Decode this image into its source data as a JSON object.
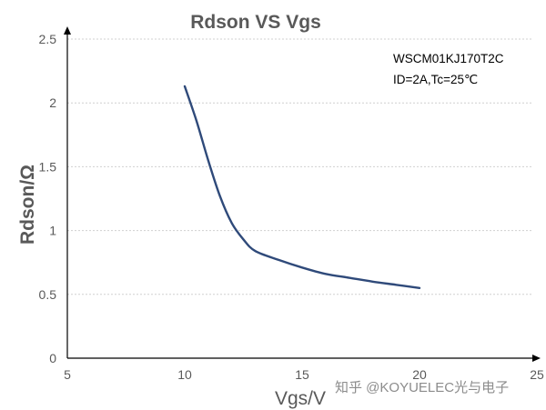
{
  "chart_data": {
    "type": "line",
    "title": "Rdson VS Vgs",
    "xlabel": "Vgs/V",
    "ylabel": "Rdson/Ω",
    "xlim": [
      5,
      25
    ],
    "ylim": [
      0,
      2.5
    ],
    "xticks": [
      5,
      10,
      15,
      20,
      25
    ],
    "yticks": [
      0,
      0.5,
      1,
      1.5,
      2,
      2.5
    ],
    "xtick_labels": [
      "5",
      "10",
      "15",
      "20",
      "25"
    ],
    "ytick_labels": [
      "0",
      "0.5",
      "1",
      "1.5",
      "2",
      "2.5"
    ],
    "grid": true,
    "series": [
      {
        "name": "Rdson",
        "color": "#2f4a7a",
        "x": [
          10.0,
          10.5,
          11.0,
          11.5,
          12.0,
          12.5,
          13.0,
          14.0,
          15.0,
          16.0,
          17.0,
          18.0,
          19.0,
          20.0
        ],
        "y": [
          2.13,
          1.86,
          1.55,
          1.27,
          1.06,
          0.93,
          0.84,
          0.77,
          0.71,
          0.66,
          0.63,
          0.6,
          0.575,
          0.55
        ]
      }
    ],
    "annotations": [
      "WSCM01KJ170T2C",
      "ID=2A,Tc=25℃"
    ]
  },
  "watermark": "知乎 @KOYUELEC光与电子"
}
